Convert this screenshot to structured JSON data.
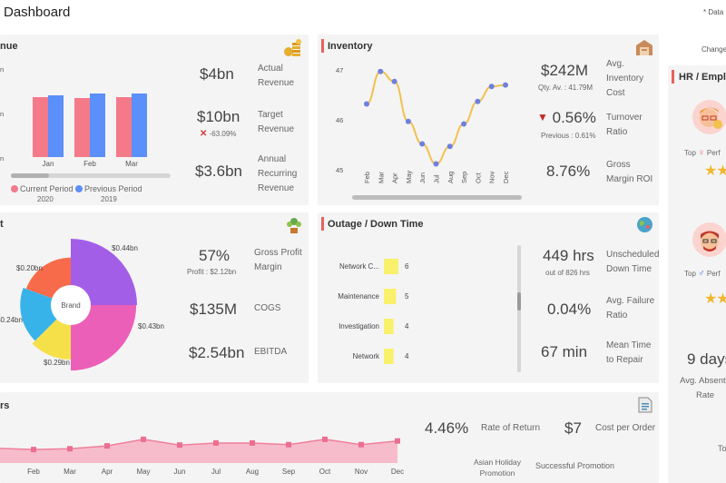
{
  "header": {
    "title": "Dashboard",
    "data_note": "* Data",
    "change_note": "Change"
  },
  "colors": {
    "accent": "#e8625f",
    "current": "#f47a8a",
    "previous": "#5b8ff9",
    "gold": "#f2c14e",
    "pink_area": "#f4a7b9",
    "line": "#f58ea8"
  },
  "revenue": {
    "title": "nue",
    "chart_data": {
      "type": "bar",
      "categories": [
        "Jan",
        "Feb",
        "Mar"
      ],
      "series": [
        {
          "name": "Current Period",
          "sub": "2020",
          "values": [
            6.6,
            6.5,
            6.6
          ]
        },
        {
          "name": "Previous Period",
          "sub": "2019",
          "values": [
            6.8,
            7.0,
            7.0
          ]
        }
      ],
      "ylim": [
        0,
        10
      ],
      "axis_ticks": [
        "n",
        "n",
        "n"
      ]
    },
    "metrics": [
      {
        "value": "$4bn",
        "label": "Actual Revenue"
      },
      {
        "value": "$10bn",
        "label": "Target Revenue",
        "delta": "-63.09%"
      },
      {
        "value": "$3.6bn",
        "label": "Annual Recurring Revenue"
      }
    ]
  },
  "inventory": {
    "title": "Inventory",
    "chart_data": {
      "type": "line",
      "categories": [
        "Feb",
        "Mar",
        "Apr",
        "May",
        "Jun",
        "Jul",
        "Aug",
        "Sep",
        "Oct",
        "Nov",
        "Dec"
      ],
      "values": [
        46.3,
        46.95,
        46.75,
        45.95,
        45.5,
        45.1,
        45.45,
        45.9,
        46.35,
        46.65,
        46.68
      ],
      "ylim": [
        45,
        47
      ],
      "yticks": [
        "47",
        "46",
        "45"
      ]
    },
    "metrics": [
      {
        "value": "$242M",
        "label": "Avg. Inventory Cost",
        "sub": "Qty. Av. : 41.79M"
      },
      {
        "value": "0.56%",
        "label": "Turnover Ratio",
        "sub": "Previous : 0.61%"
      },
      {
        "value": "8.76%",
        "label": "Gross Margin ROI"
      }
    ]
  },
  "profit": {
    "title": "t",
    "chart_data": {
      "type": "pie",
      "center_label": "Brand",
      "slices": [
        {
          "label": "$0.44bn",
          "value": 0.44,
          "color": "#a35ee8"
        },
        {
          "label": "$0.43bn",
          "value": 0.43,
          "color": "#ec5fb8"
        },
        {
          "label": "$0.29bn",
          "value": 0.29,
          "color": "#f6e04a"
        },
        {
          "label": "$0.24bn",
          "value": 0.24,
          "color": "#38b3ea"
        },
        {
          "label": "$0.20bn",
          "value": 0.2,
          "color": "#f76a4a"
        }
      ]
    },
    "metrics": [
      {
        "value": "57%",
        "label": "Gross Profit Margin",
        "sub": "Profit : $2.12bn"
      },
      {
        "value": "$135M",
        "label": "COGS"
      },
      {
        "value": "$2.54bn",
        "label": "EBITDA"
      }
    ]
  },
  "outage": {
    "title": "Outage / Down Time",
    "chart_data": {
      "type": "bar",
      "categories": [
        "Network C...",
        "Maintenance",
        "Investigation",
        "Network"
      ],
      "values": [
        6,
        5,
        4,
        4
      ]
    },
    "metrics": [
      {
        "value": "449 hrs",
        "label": "Unscheduled Down Time",
        "sub": "out of 826 hrs"
      },
      {
        "value": "0.04%",
        "label": "Avg. Failure Ratio"
      },
      {
        "value": "67 min",
        "label": "Mean Time to Repair"
      }
    ]
  },
  "orders": {
    "title": "rs",
    "chart_data": {
      "type": "area",
      "categories": [
        "Feb",
        "Mar",
        "Apr",
        "May",
        "Jun",
        "Jul",
        "Aug",
        "Sep",
        "Oct",
        "Nov",
        "Dec"
      ],
      "values": [
        3.3,
        3.5,
        4.2,
        5.8,
        4.4,
        4.9,
        4.9,
        4.5,
        5.8,
        4.5,
        5.4
      ],
      "ylim": [
        0,
        10
      ]
    },
    "metrics": [
      {
        "value": "4.46%",
        "label": "Rate of Return"
      },
      {
        "value": "$7",
        "label": "Cost per Order"
      }
    ],
    "footer_labels": [
      "Asian Holiday Promotion",
      "Successful Promotion"
    ]
  },
  "hr": {
    "title": "HR / Emplo",
    "employees": [
      {
        "top_label": "Top",
        "perf": "Perf"
      },
      {
        "top_label": "Top",
        "perf": "Perf"
      }
    ],
    "absent_value": "9 days",
    "absent_label": "Avg. Absente Rate",
    "footer": "To"
  }
}
